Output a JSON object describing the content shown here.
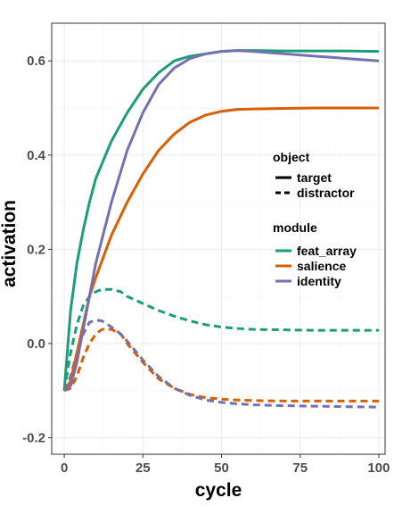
{
  "chart_data": {
    "type": "line",
    "xlabel": "cycle",
    "ylabel": "activation",
    "xlim": [
      -4,
      102
    ],
    "ylim": [
      -0.235,
      0.68
    ],
    "xticks": [
      0,
      25,
      50,
      75,
      100
    ],
    "xtick_labels": [
      "0",
      "25",
      "50",
      "75",
      "100"
    ],
    "yticks": [
      -0.2,
      0.0,
      0.2,
      0.4,
      0.6
    ],
    "ytick_labels": [
      "-0.2",
      "0.0",
      "0.2",
      "0.4",
      "0.6"
    ],
    "grid": true,
    "legend_position": "right-inside",
    "legend": {
      "object_title": "object",
      "object_entries": [
        {
          "label": "target",
          "linetype": "solid"
        },
        {
          "label": "distractor",
          "linetype": "dashed"
        }
      ],
      "module_title": "module",
      "module_entries": [
        {
          "label": "feat_array",
          "color": "#1b9e77"
        },
        {
          "label": "salience",
          "color": "#d95f02"
        },
        {
          "label": "identity",
          "color": "#7570b3"
        }
      ]
    },
    "series": [
      {
        "module": "feat_array",
        "object": "target",
        "color": "#1b9e77",
        "linetype": "solid",
        "x": [
          0,
          2,
          4,
          6,
          8,
          10,
          15,
          20,
          25,
          30,
          35,
          40,
          45,
          50,
          55,
          60,
          70,
          80,
          90,
          100
        ],
        "y": [
          -0.1,
          0.07,
          0.17,
          0.24,
          0.3,
          0.35,
          0.43,
          0.49,
          0.54,
          0.575,
          0.6,
          0.61,
          0.615,
          0.62,
          0.622,
          0.622,
          0.621,
          0.621,
          0.621,
          0.62
        ]
      },
      {
        "module": "salience",
        "object": "target",
        "color": "#d95f02",
        "linetype": "solid",
        "x": [
          0,
          2,
          4,
          6,
          8,
          10,
          15,
          20,
          25,
          30,
          35,
          40,
          45,
          50,
          55,
          60,
          70,
          80,
          90,
          100
        ],
        "y": [
          -0.1,
          -0.08,
          -0.02,
          0.04,
          0.1,
          0.14,
          0.23,
          0.3,
          0.36,
          0.41,
          0.445,
          0.47,
          0.485,
          0.493,
          0.497,
          0.498,
          0.499,
          0.5,
          0.5,
          0.5
        ]
      },
      {
        "module": "identity",
        "object": "target",
        "color": "#7570b3",
        "linetype": "solid",
        "x": [
          0,
          2,
          4,
          6,
          8,
          10,
          15,
          20,
          25,
          30,
          35,
          40,
          45,
          50,
          55,
          60,
          70,
          80,
          90,
          100
        ],
        "y": [
          -0.1,
          -0.09,
          -0.04,
          0.03,
          0.1,
          0.17,
          0.3,
          0.41,
          0.49,
          0.55,
          0.585,
          0.605,
          0.615,
          0.62,
          0.622,
          0.62,
          0.615,
          0.61,
          0.605,
          0.6
        ]
      },
      {
        "module": "feat_array",
        "object": "distractor",
        "color": "#1b9e77",
        "linetype": "dashed",
        "x": [
          0,
          2,
          4,
          6,
          8,
          10,
          12,
          15,
          18,
          20,
          25,
          30,
          35,
          40,
          45,
          50,
          55,
          60,
          70,
          80,
          90,
          100
        ],
        "y": [
          -0.1,
          -0.02,
          0.04,
          0.08,
          0.1,
          0.11,
          0.115,
          0.115,
          0.11,
          0.1,
          0.085,
          0.07,
          0.058,
          0.048,
          0.04,
          0.035,
          0.032,
          0.03,
          0.029,
          0.028,
          0.028,
          0.028
        ]
      },
      {
        "module": "salience",
        "object": "distractor",
        "color": "#d95f02",
        "linetype": "dashed",
        "x": [
          0,
          2,
          4,
          6,
          8,
          10,
          12,
          15,
          18,
          20,
          25,
          30,
          35,
          40,
          45,
          50,
          55,
          60,
          70,
          80,
          90,
          100
        ],
        "y": [
          -0.1,
          -0.095,
          -0.07,
          -0.03,
          0.0,
          0.02,
          0.03,
          0.03,
          0.02,
          0.0,
          -0.04,
          -0.075,
          -0.095,
          -0.108,
          -0.115,
          -0.118,
          -0.12,
          -0.121,
          -0.122,
          -0.122,
          -0.122,
          -0.122
        ]
      },
      {
        "module": "identity",
        "object": "distractor",
        "color": "#7570b3",
        "linetype": "dashed",
        "x": [
          0,
          2,
          4,
          6,
          8,
          10,
          12,
          15,
          18,
          20,
          25,
          30,
          35,
          40,
          45,
          50,
          55,
          60,
          70,
          80,
          90,
          100
        ],
        "y": [
          -0.1,
          -0.07,
          -0.02,
          0.02,
          0.045,
          0.05,
          0.048,
          0.035,
          0.02,
          0.005,
          -0.035,
          -0.07,
          -0.095,
          -0.11,
          -0.12,
          -0.125,
          -0.128,
          -0.13,
          -0.132,
          -0.133,
          -0.134,
          -0.135
        ]
      }
    ]
  }
}
